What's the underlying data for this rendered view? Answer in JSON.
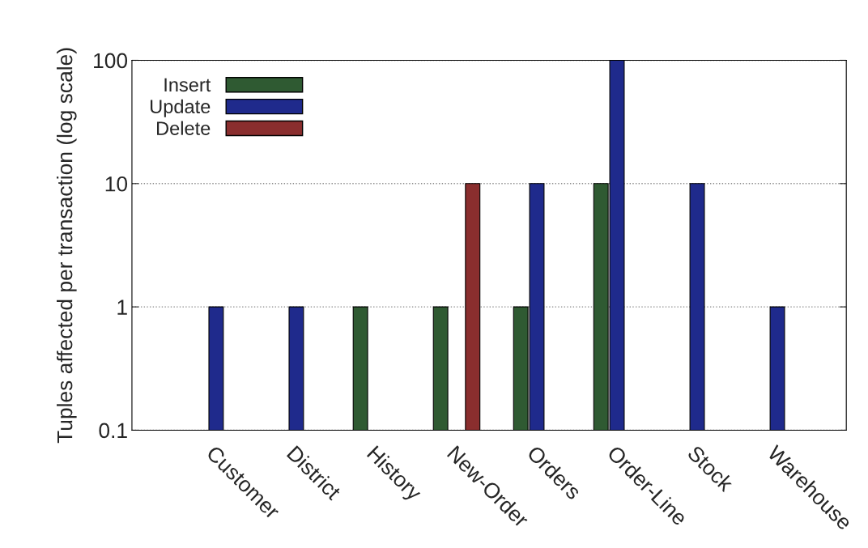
{
  "chart_data": {
    "type": "bar",
    "ylabel": "Tuples affected per transaction (log scale)",
    "categories": [
      "Customer",
      "District",
      "History",
      "New-Order",
      "Orders",
      "Order-Line",
      "Stock",
      "Warehouse"
    ],
    "series": [
      {
        "name": "Insert",
        "color": "#2f5a32",
        "values": [
          null,
          null,
          1,
          1,
          1,
          10,
          null,
          null
        ]
      },
      {
        "name": "Update",
        "color": "#1f2a8c",
        "values": [
          1,
          1,
          null,
          null,
          10,
          100,
          10,
          1
        ]
      },
      {
        "name": "Delete",
        "color": "#8a2e2e",
        "values": [
          null,
          null,
          null,
          10,
          null,
          null,
          null,
          null
        ]
      }
    ],
    "log": true,
    "ylim": [
      0.1,
      100
    ],
    "yticks": [
      0.1,
      1,
      10,
      100
    ],
    "grid": "y",
    "legend": "top left"
  }
}
